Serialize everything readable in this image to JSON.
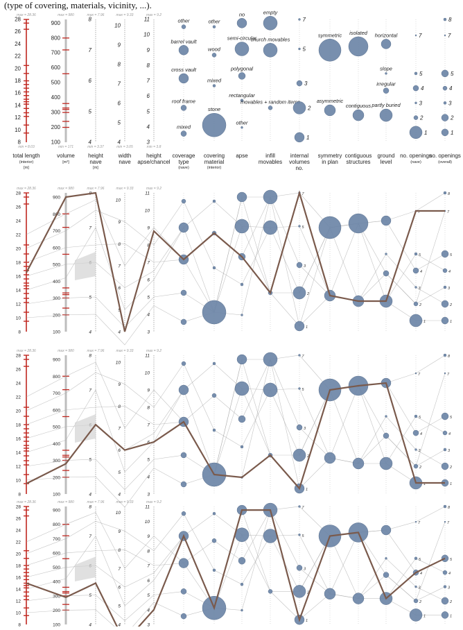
{
  "caption_fragment": "(type of covering, materials, vicinity, ...).",
  "colors": {
    "bubble": "#6d86a8",
    "bubble_edge": "#4d6585",
    "highlight": "#7a5a4c",
    "grey_line": "#a9a9a9",
    "axis_red": "#c0261f",
    "axis_grey": "#bdbdbd"
  },
  "axes": [
    {
      "key": "length",
      "label": [
        "total length",
        "(interior)",
        "[m]"
      ],
      "max_label": "max = 28.36",
      "min_label": "min = 8.03",
      "ticks": [
        "8",
        "10",
        "12",
        "14",
        "16",
        "18",
        "20",
        "22",
        "24",
        "26",
        "28"
      ]
    },
    {
      "key": "volume",
      "label": [
        "volume",
        "[m³]"
      ],
      "max_label": "max = 980",
      "min_label": "min = 171",
      "ticks": [
        "100",
        "200",
        "300",
        "400",
        "500",
        "600",
        "700",
        "800",
        "900"
      ]
    },
    {
      "key": "hnave",
      "label": [
        "height",
        "nave",
        "[m]"
      ],
      "max_label": "max = 7.96",
      "min_label": "min = 3.37",
      "ticks": [
        "4",
        "5",
        "6",
        "7",
        "8"
      ]
    },
    {
      "key": "wnave",
      "label": [
        "width",
        "nave"
      ],
      "max_label": "max = 9.33",
      "min_label": "min = 3.05",
      "ticks": [
        "4",
        "5",
        "6",
        "7",
        "8",
        "9",
        "10"
      ]
    },
    {
      "key": "hapse",
      "label": [
        "height",
        "apse/chancel"
      ],
      "max_label": "max = 9.2",
      "min_label": "min = 3.8",
      "ticks": [
        "3",
        "4",
        "5",
        "6",
        "7",
        "8",
        "9",
        "10",
        "11"
      ]
    },
    {
      "key": "coverage",
      "label": [
        "coverage",
        "type",
        "(nave)"
      ],
      "categories": [
        "other",
        "barrel vault",
        "cross vault",
        "roof frame",
        "mixed"
      ]
    },
    {
      "key": "material",
      "label": [
        "covering",
        "material",
        "(interior)"
      ],
      "categories": [
        "other",
        "wood",
        "mixed",
        "stone"
      ]
    },
    {
      "key": "apse",
      "label": [
        "apse"
      ],
      "categories": [
        "no",
        "semi-circular",
        "polygonal",
        "rectangular",
        "other"
      ]
    },
    {
      "key": "infill",
      "label": [
        "infill",
        "movables"
      ],
      "categories": [
        "empty",
        "church movables",
        "movables + random items"
      ]
    },
    {
      "key": "internal",
      "label": [
        "internal",
        "volumes",
        "no."
      ],
      "categories": [
        "7",
        "5",
        "3",
        "2",
        "1"
      ]
    },
    {
      "key": "symmetry",
      "label": [
        "symmetry",
        "in plan"
      ],
      "categories": [
        "symmetric",
        "asymmetric"
      ]
    },
    {
      "key": "contiguous",
      "label": [
        "contiguous",
        "structures"
      ],
      "categories": [
        "isolated",
        "contiguous"
      ]
    },
    {
      "key": "ground",
      "label": [
        "ground",
        "level"
      ],
      "categories": [
        "horizontal",
        "slope",
        "irregular",
        "partly buried"
      ]
    },
    {
      "key": "opnave",
      "label": [
        "no. openings",
        "(nave)"
      ],
      "categories": [
        "7",
        "5",
        "4",
        "3",
        "2",
        "1"
      ]
    },
    {
      "key": "opall",
      "label": [
        "no. openings",
        "(overall)"
      ],
      "categories": [
        "8",
        "7",
        "5",
        "4",
        "3",
        "2",
        "1"
      ]
    }
  ],
  "chart_data": [
    {
      "type": "parallel-coordinates",
      "title": "",
      "panel": "legend / overview",
      "dimensions": [
        "total length (interior) [m]",
        "volume [m³]",
        "height nave [m]",
        "width nave",
        "height apse/chancel",
        "coverage type (nave)",
        "covering material (interior)",
        "apse",
        "infill movables",
        "internal volumes no.",
        "symmetry in plan",
        "contiguous structures",
        "ground level",
        "no. openings (nave)",
        "no. openings (overall)"
      ],
      "ranges": {
        "total length (interior) [m]": [
          8.03,
          28.36
        ],
        "volume [m³]": [
          171,
          980
        ],
        "height nave [m]": [
          3.37,
          7.96
        ],
        "width nave": [
          3.05,
          9.33
        ],
        "height apse/chancel": [
          3.8,
          9.2
        ]
      }
    },
    {
      "type": "parallel-coordinates",
      "panel": "highlighted case 1",
      "highlight": {
        "total length (interior) [m]": 16.5,
        "volume [m³]": 900,
        "height nave [m]": 8,
        "width nave": 4,
        "height apse/chancel": 8.8,
        "coverage type (nave)": "cross vault",
        "covering material (interior)": "wood",
        "apse": "polygonal",
        "infill movables": "movables + random items",
        "internal volumes no.": "7",
        "symmetry in plan": "asymmetric",
        "contiguous structures": "contiguous",
        "ground level": "partly buried",
        "no. openings (nave)": "7",
        "no. openings (overall)": "7"
      }
    },
    {
      "type": "parallel-coordinates",
      "panel": "highlighted case 2",
      "highlight": {
        "total length (interior) [m]": 9.5,
        "volume [m³]": 280,
        "height nave [m]": 6,
        "width nave": 6,
        "height apse/chancel": 6,
        "coverage type (nave)": "cross vault",
        "covering material (interior)": "stone",
        "apse": "other",
        "infill movables": "movables + random items",
        "internal volumes no.": "1",
        "symmetry in plan": "symmetric",
        "contiguous structures": "isolated",
        "ground level": "horizontal",
        "no. openings (nave)": "1",
        "no. openings (overall)": "1"
      }
    },
    {
      "type": "parallel-coordinates",
      "panel": "highlighted case 3",
      "highlight": {
        "total length (interior) [m]": 15,
        "volume [m³]": 290,
        "height nave [m]": 5.4,
        "width nave": 3.05,
        "height apse/chancel": 4,
        "coverage type (nave)": "barrel vault",
        "covering material (interior)": "stone",
        "apse": "no",
        "infill movables": "empty",
        "internal volumes no.": "1",
        "symmetry in plan": "symmetric",
        "contiguous structures": "isolated",
        "ground level": "partly buried",
        "no. openings (nave)": "4",
        "no. openings (overall)": "5"
      }
    }
  ]
}
